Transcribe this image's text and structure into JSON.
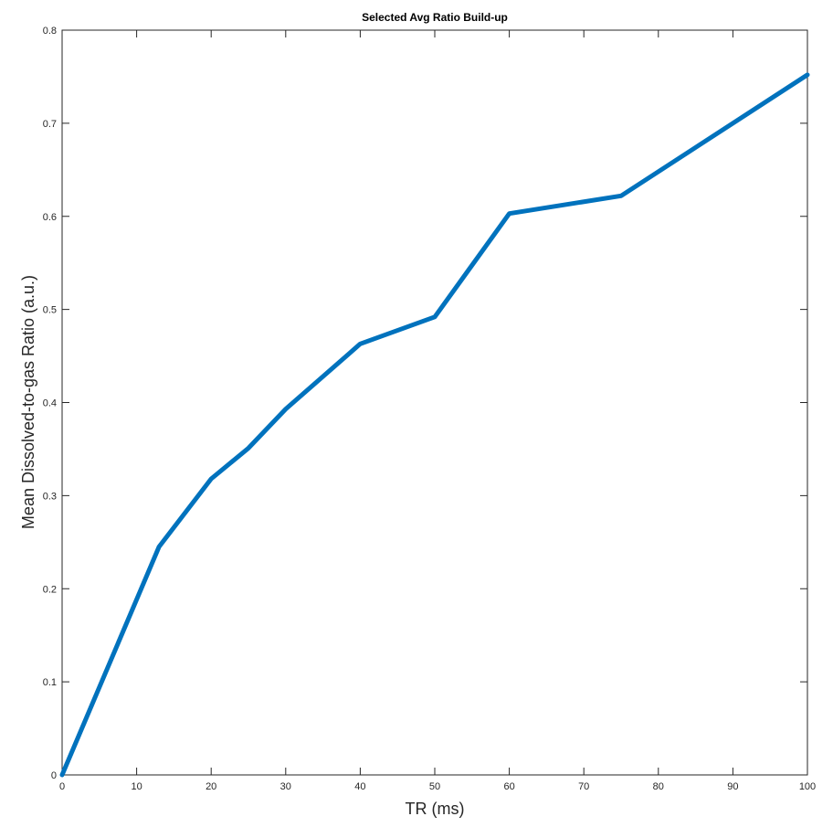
{
  "chart_data": {
    "type": "line",
    "title": "Selected Avg Ratio Build-up",
    "xlabel": "TR (ms)",
    "ylabel": "Mean Dissolved-to-gas Ratio (a.u.)",
    "xlim": [
      0,
      100
    ],
    "ylim": [
      0,
      0.8
    ],
    "xticks": [
      0,
      10,
      20,
      30,
      40,
      50,
      60,
      70,
      80,
      90,
      100
    ],
    "yticks": [
      0,
      0.1,
      0.2,
      0.3,
      0.4,
      0.5,
      0.6,
      0.7,
      0.8
    ],
    "grid": false,
    "series": [
      {
        "color": "#0072BD",
        "x": [
          0,
          13,
          20,
          25,
          30,
          40,
          50,
          60,
          75,
          100
        ],
        "y": [
          0.0,
          0.245,
          0.318,
          0.351,
          0.393,
          0.463,
          0.492,
          0.603,
          0.622,
          0.752
        ]
      }
    ]
  }
}
